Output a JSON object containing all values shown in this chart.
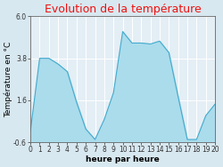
{
  "title": "Evolution de la température",
  "xlabel": "heure par heure",
  "ylabel": "Température en °C",
  "ylim": [
    -0.6,
    6.0
  ],
  "xlim": [
    0,
    20
  ],
  "yticks": [
    -0.6,
    1.6,
    3.8,
    6.0
  ],
  "xtick_labels": [
    "0",
    "1",
    "2",
    "3",
    "4",
    "5",
    "6",
    "7",
    "8",
    "9",
    "10",
    "11",
    "12",
    "13",
    "14",
    "15",
    "16",
    "17",
    "18",
    "19",
    "20"
  ],
  "hours": [
    0,
    1,
    2,
    3,
    4,
    5,
    6,
    7,
    8,
    9,
    10,
    11,
    12,
    13,
    14,
    15,
    16,
    17,
    18,
    19,
    20
  ],
  "temps": [
    0.0,
    3.8,
    3.8,
    3.5,
    3.1,
    1.5,
    0.1,
    -0.45,
    0.6,
    2.0,
    5.2,
    4.6,
    4.6,
    4.55,
    4.7,
    4.1,
    1.8,
    -0.45,
    -0.45,
    0.8,
    1.4
  ],
  "fill_color": "#aadcec",
  "line_color": "#44aacc",
  "title_color": "#ee1111",
  "bg_color": "#d8e8f0",
  "plot_bg_color": "#e4eef5",
  "grid_color": "#ffffff",
  "title_fontsize": 9,
  "label_fontsize": 6.5,
  "tick_fontsize": 5.5
}
